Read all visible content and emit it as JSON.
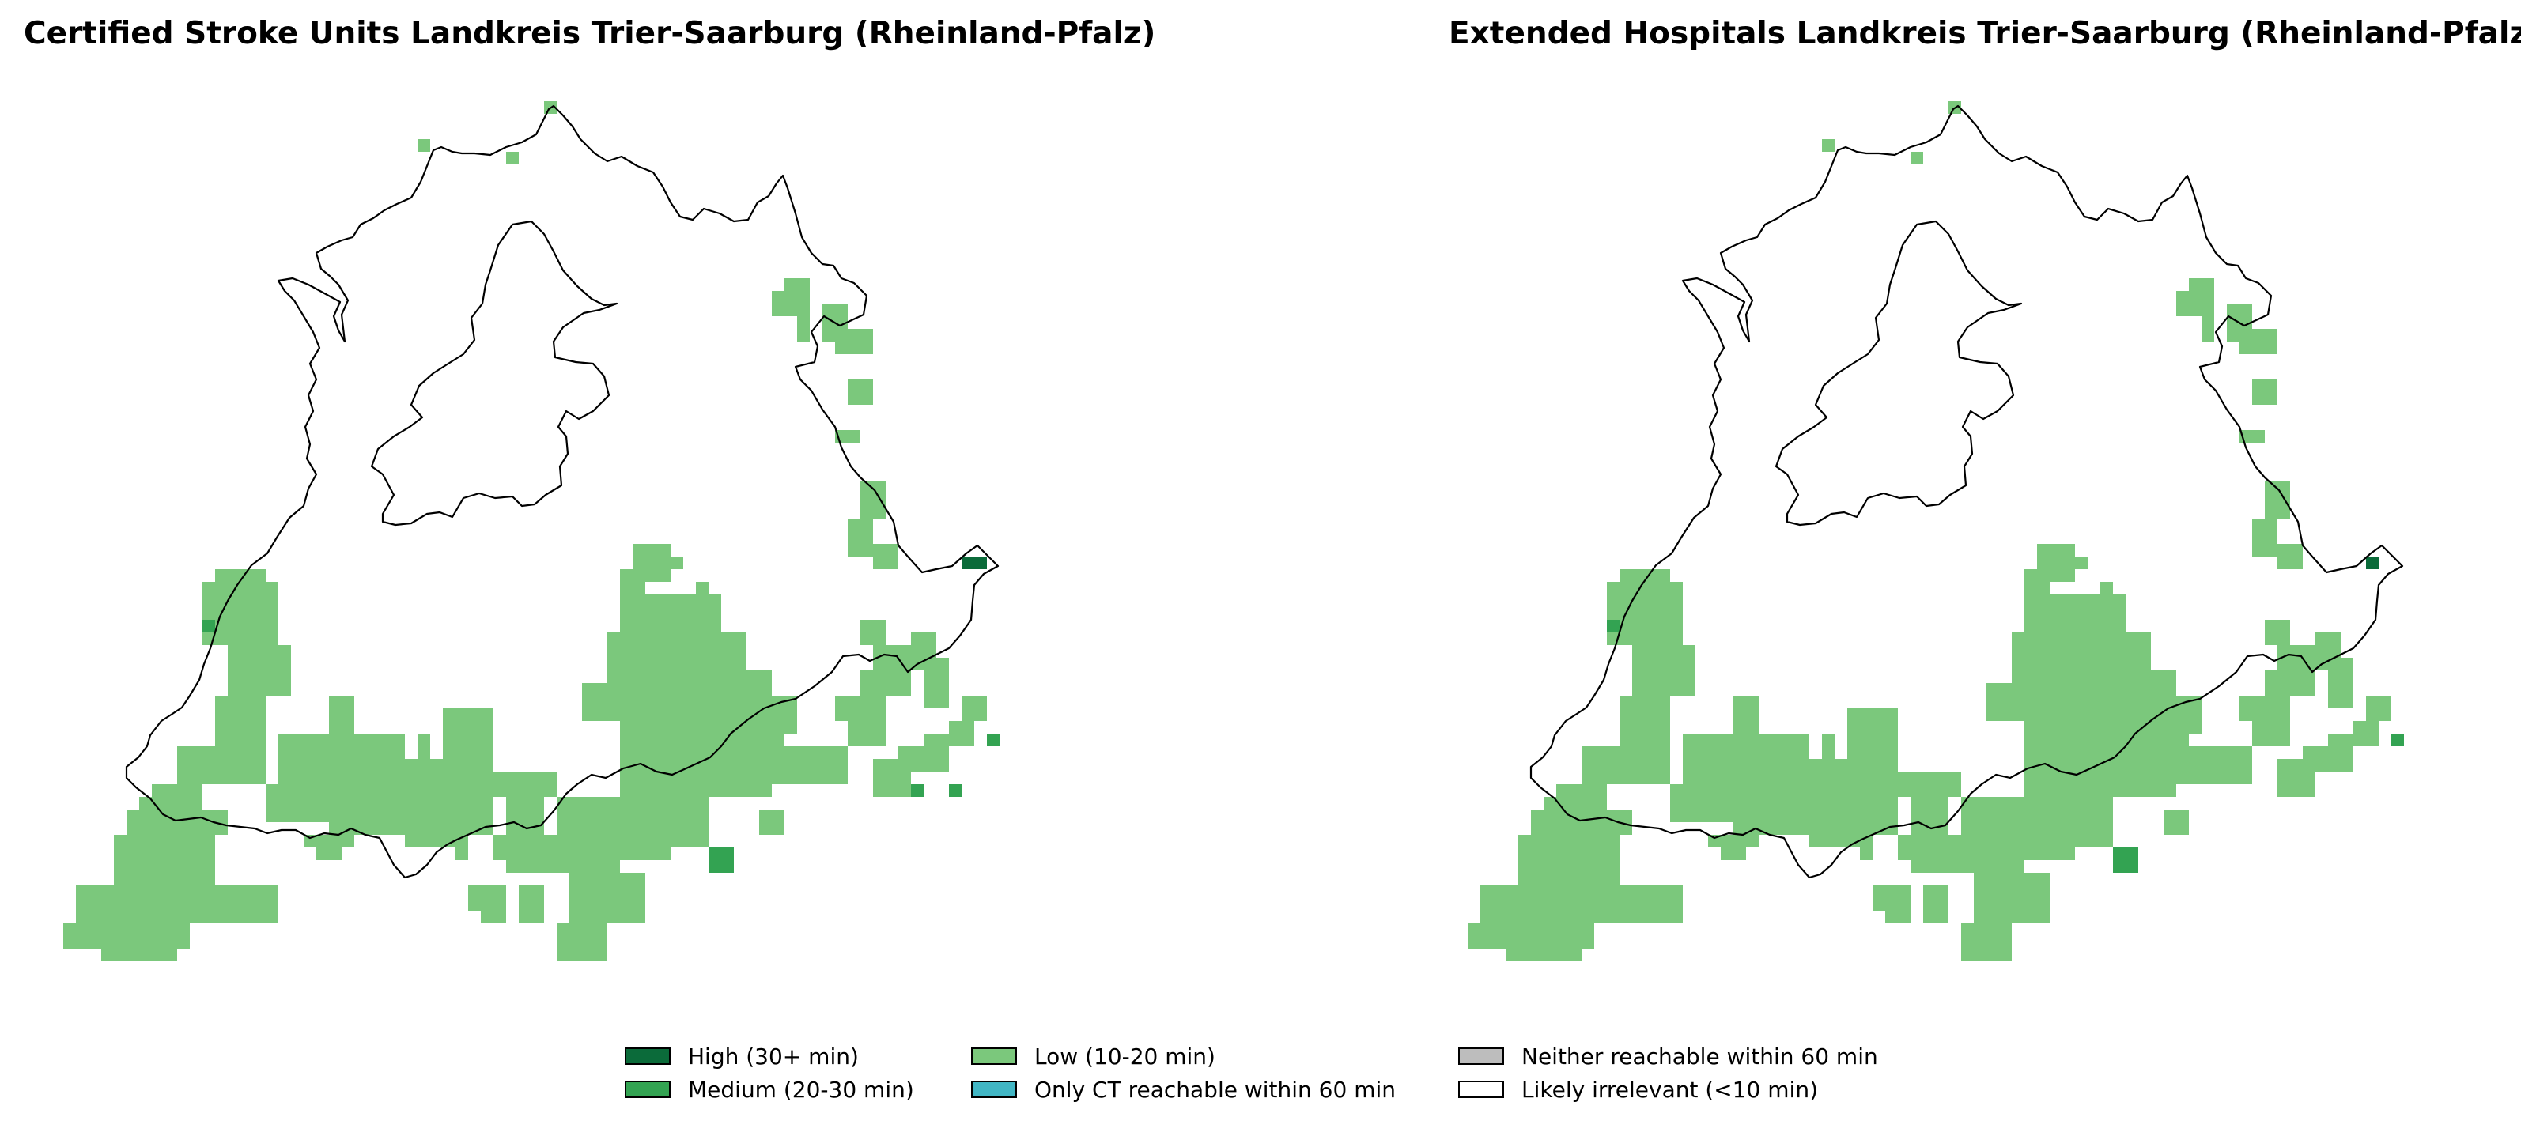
{
  "maps": [
    {
      "title": "Certified Stroke Units Landkreis Trier-Saarburg (Rheinland-Pfalz)",
      "region": "Landkreis Trier-Saarburg",
      "zones": {
        "low": [
          [
            22,
            36
          ],
          [
            21,
            37
          ],
          [
            25,
            37
          ],
          [
            26,
            37
          ],
          [
            44,
            40
          ],
          [
            45,
            40
          ],
          [
            23,
            25
          ],
          [
            23,
            26
          ],
          [
            24,
            26
          ],
          [
            23,
            27
          ],
          [
            24,
            27
          ],
          [
            22,
            28
          ],
          [
            24,
            28
          ],
          [
            25,
            28
          ],
          [
            26,
            28
          ],
          [
            33,
            29
          ],
          [
            34,
            29
          ],
          [
            34,
            30
          ],
          [
            35,
            31
          ],
          [
            36,
            31
          ],
          [
            36,
            30
          ],
          [
            37,
            30
          ],
          [
            38,
            30
          ],
          [
            39,
            30
          ],
          [
            40,
            29
          ],
          [
            41,
            29
          ],
          [
            42,
            28
          ],
          [
            43,
            28
          ],
          [
            44,
            28
          ],
          [
            45,
            28
          ]
        ],
        "medium": [
          [
            20,
            38
          ],
          [
            21,
            38
          ],
          [
            22,
            36
          ],
          [
            52,
            33
          ],
          [
            53,
            30
          ]
        ],
        "high": [
          [
            54,
            39
          ],
          [
            55,
            39
          ]
        ]
      }
    },
    {
      "title": "Extended Hospitals Landkreis Trier-Saarburg (Rheinland-Pfalz)",
      "region": "Landkreis Trier-Saarburg",
      "zones": {
        "low": [
          [
            22,
            36
          ],
          [
            21,
            37
          ],
          [
            25,
            37
          ],
          [
            26,
            37
          ],
          [
            44,
            40
          ],
          [
            45,
            40
          ],
          [
            23,
            25
          ],
          [
            23,
            26
          ],
          [
            24,
            26
          ],
          [
            23,
            27
          ],
          [
            24,
            27
          ],
          [
            22,
            28
          ],
          [
            24,
            28
          ],
          [
            25,
            28
          ],
          [
            26,
            28
          ]
        ],
        "medium": [
          [
            20,
            38
          ],
          [
            21,
            38
          ],
          [
            52,
            33
          ]
        ],
        "high": [
          [
            54,
            39
          ]
        ]
      }
    }
  ],
  "legend": [
    {
      "label": "High (30+ min)",
      "color": "#0b6b3a"
    },
    {
      "label": "Medium (20-30 min)",
      "color": "#33a352"
    },
    {
      "label": "Low (10-20 min)",
      "color": "#7bc87c"
    },
    {
      "label": "Only CT reachable within 60 min",
      "color": "#41b6c4"
    },
    {
      "label": "Neither reachable within 60 min",
      "color": "#bdbdbd"
    },
    {
      "label": "Likely irrelevant (<10 min)",
      "color": "#ffffff"
    }
  ]
}
